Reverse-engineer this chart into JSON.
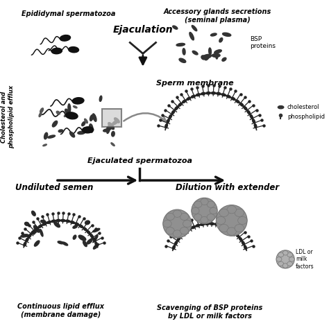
{
  "bg_color": "#ffffff",
  "labels": {
    "epididymal": "Epididymal spermatozoa",
    "accessory": "Accessory glands secretions\n(seminal plasma)",
    "ejaculation": "Ejaculation",
    "bsp": "BSP\nproteins",
    "sperm_membrane": "Sperm membrane",
    "cholesterol_efflux": "Cholesterol and\nphospholipid efflux",
    "ejaculated": "Ejaculated spermatozoa",
    "cholesterol_leg": "cholesterol",
    "phospholipid_leg": "phospholipid",
    "undiluted": "Undiluted semen",
    "dilution": "Dilution with extender",
    "continuous": "Continuous lipid efflux\n(membrane damage)",
    "scavenging": "Scavenging of BSP proteins\nby LDL or milk factors",
    "ldl": "LDL or\nmilk\nfactors"
  },
  "sperm_color": "#111111",
  "bsp_color": "#333333",
  "ldl_color": "#b0b0b0",
  "ldl_edge": "#888888",
  "arrow_color": "#444444",
  "membrane_color": "#222222",
  "zoom_box_color": "#aaaaaa",
  "gray_bsp_color": "#808080"
}
